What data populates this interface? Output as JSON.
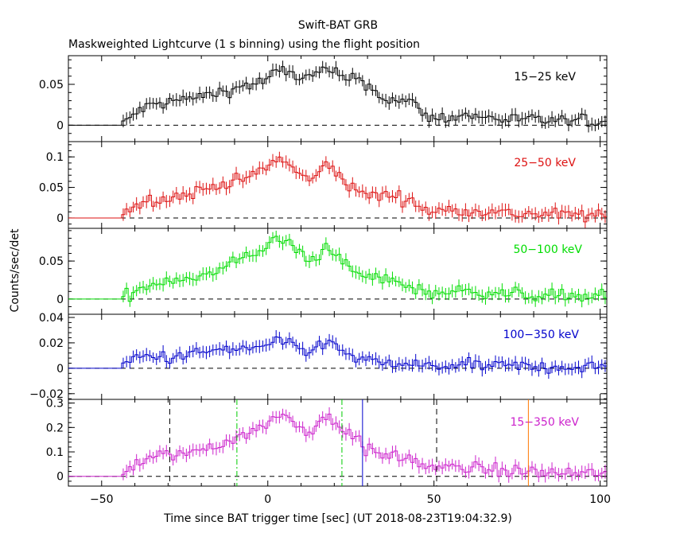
{
  "title": "Swift-BAT GRB",
  "subtitle": "Maskweighted Lightcurve (1 s binning) using the flight position",
  "xlabel": "Time since BAT trigger time [sec] (UT 2018-08-23T19:04:32.9)",
  "ylabel": "Counts/sec/det",
  "chart_data": [
    {
      "type": "line",
      "panel": "15-25 keV",
      "label": "15−25 keV",
      "color": "#000000",
      "xlim": [
        -60,
        102
      ],
      "ylim": [
        -0.02,
        0.085
      ],
      "yticks": [
        0,
        0.05
      ],
      "ytick_labels": [
        "0",
        "0.05"
      ],
      "anchors": [
        [
          -60,
          0
        ],
        [
          -44,
          0
        ],
        [
          -43,
          0.003
        ],
        [
          -40,
          0.015
        ],
        [
          -35,
          0.025
        ],
        [
          -30,
          0.028
        ],
        [
          -25,
          0.032
        ],
        [
          -20,
          0.035
        ],
        [
          -15,
          0.04
        ],
        [
          -10,
          0.045
        ],
        [
          -5,
          0.05
        ],
        [
          0,
          0.055
        ],
        [
          3,
          0.068
        ],
        [
          6,
          0.065
        ],
        [
          9,
          0.06
        ],
        [
          12,
          0.058
        ],
        [
          15,
          0.062
        ],
        [
          18,
          0.07
        ],
        [
          21,
          0.06
        ],
        [
          24,
          0.055
        ],
        [
          27,
          0.06
        ],
        [
          30,
          0.05
        ],
        [
          33,
          0.038
        ],
        [
          36,
          0.032
        ],
        [
          39,
          0.03
        ],
        [
          42,
          0.028
        ],
        [
          45,
          0.025
        ],
        [
          48,
          0.01
        ],
        [
          50,
          0.008
        ],
        [
          55,
          0.01
        ],
        [
          60,
          0.012
        ],
        [
          65,
          0.01
        ],
        [
          70,
          0.008
        ],
        [
          75,
          0.007
        ],
        [
          80,
          0.006
        ],
        [
          85,
          0.006
        ],
        [
          90,
          0.005
        ],
        [
          95,
          0.005
        ],
        [
          102,
          0.005
        ]
      ]
    },
    {
      "type": "line",
      "panel": "25-50 keV",
      "label": "25−50 keV",
      "color": "#dd1111",
      "xlim": [
        -60,
        102
      ],
      "ylim": [
        -0.017,
        0.125
      ],
      "yticks": [
        0,
        0.05,
        0.1
      ],
      "ytick_labels": [
        "0",
        "0.05",
        "0.1"
      ],
      "anchors": [
        [
          -60,
          0
        ],
        [
          -44,
          0
        ],
        [
          -43,
          0.012
        ],
        [
          -40,
          0.02
        ],
        [
          -35,
          0.03
        ],
        [
          -30,
          0.033
        ],
        [
          -25,
          0.038
        ],
        [
          -20,
          0.045
        ],
        [
          -15,
          0.055
        ],
        [
          -10,
          0.06
        ],
        [
          -5,
          0.068
        ],
        [
          0,
          0.085
        ],
        [
          3,
          0.095
        ],
        [
          6,
          0.09
        ],
        [
          9,
          0.075
        ],
        [
          12,
          0.06
        ],
        [
          15,
          0.07
        ],
        [
          18,
          0.09
        ],
        [
          21,
          0.075
        ],
        [
          24,
          0.05
        ],
        [
          27,
          0.045
        ],
        [
          30,
          0.04
        ],
        [
          33,
          0.035
        ],
        [
          36,
          0.038
        ],
        [
          39,
          0.035
        ],
        [
          42,
          0.03
        ],
        [
          45,
          0.022
        ],
        [
          48,
          0.012
        ],
        [
          50,
          0.01
        ],
        [
          55,
          0.013
        ],
        [
          60,
          0.014
        ],
        [
          65,
          0.012
        ],
        [
          70,
          0.008
        ],
        [
          75,
          0.007
        ],
        [
          80,
          0.006
        ],
        [
          85,
          0.006
        ],
        [
          90,
          0.005
        ],
        [
          95,
          0.005
        ],
        [
          102,
          0.003
        ]
      ]
    },
    {
      "type": "line",
      "panel": "50-100 keV",
      "label": "50−100 keV",
      "color": "#00dd00",
      "xlim": [
        -60,
        102
      ],
      "ylim": [
        -0.02,
        0.093
      ],
      "yticks": [
        0,
        0.05
      ],
      "ytick_labels": [
        "0",
        "0.05"
      ],
      "anchors": [
        [
          -60,
          0
        ],
        [
          -44,
          0
        ],
        [
          -43,
          0.005
        ],
        [
          -40,
          0.01
        ],
        [
          -35,
          0.02
        ],
        [
          -30,
          0.025
        ],
        [
          -25,
          0.028
        ],
        [
          -20,
          0.03
        ],
        [
          -15,
          0.035
        ],
        [
          -10,
          0.05
        ],
        [
          -5,
          0.06
        ],
        [
          0,
          0.07
        ],
        [
          3,
          0.078
        ],
        [
          6,
          0.075
        ],
        [
          9,
          0.065
        ],
        [
          12,
          0.048
        ],
        [
          15,
          0.055
        ],
        [
          18,
          0.072
        ],
        [
          21,
          0.06
        ],
        [
          24,
          0.04
        ],
        [
          27,
          0.032
        ],
        [
          30,
          0.03
        ],
        [
          33,
          0.028
        ],
        [
          36,
          0.025
        ],
        [
          39,
          0.022
        ],
        [
          42,
          0.018
        ],
        [
          45,
          0.012
        ],
        [
          48,
          0.01
        ],
        [
          50,
          0.008
        ],
        [
          55,
          0.01
        ],
        [
          60,
          0.01
        ],
        [
          65,
          0.01
        ],
        [
          70,
          0.008
        ],
        [
          75,
          0.006
        ],
        [
          80,
          0.005
        ],
        [
          85,
          0.005
        ],
        [
          90,
          0.004
        ],
        [
          95,
          0.004
        ],
        [
          102,
          0.004
        ]
      ]
    },
    {
      "type": "line",
      "panel": "100-350 keV",
      "label": "100−350 keV",
      "color": "#0000cc",
      "xlim": [
        -60,
        102
      ],
      "ylim": [
        -0.0245,
        0.0425
      ],
      "yticks": [
        -0.02,
        0,
        0.02,
        0.04
      ],
      "ytick_labels": [
        "−0.02",
        "0",
        "0.02",
        "0.04"
      ],
      "anchors": [
        [
          -60,
          0
        ],
        [
          -44,
          0
        ],
        [
          -43,
          0.003
        ],
        [
          -40,
          0.008
        ],
        [
          -35,
          0.01
        ],
        [
          -30,
          0.008
        ],
        [
          -25,
          0.01
        ],
        [
          -20,
          0.012
        ],
        [
          -15,
          0.015
        ],
        [
          -10,
          0.014
        ],
        [
          -5,
          0.016
        ],
        [
          0,
          0.018
        ],
        [
          3,
          0.022
        ],
        [
          6,
          0.018
        ],
        [
          9,
          0.015
        ],
        [
          12,
          0.012
        ],
        [
          15,
          0.016
        ],
        [
          18,
          0.024
        ],
        [
          21,
          0.015
        ],
        [
          24,
          0.01
        ],
        [
          27,
          0.008
        ],
        [
          30,
          0.005
        ],
        [
          33,
          0.004
        ],
        [
          36,
          0.004
        ],
        [
          39,
          0.003
        ],
        [
          42,
          0.003
        ],
        [
          45,
          0.002
        ],
        [
          50,
          0.002
        ],
        [
          55,
          0.002
        ],
        [
          60,
          0.002
        ],
        [
          65,
          0.002
        ],
        [
          70,
          0.002
        ],
        [
          80,
          0.001
        ],
        [
          90,
          0.001
        ],
        [
          102,
          0.001
        ]
      ]
    },
    {
      "type": "line",
      "panel": "15-350 keV",
      "label": "15−350 keV",
      "color": "#cc22cc",
      "xlim": [
        -60,
        102
      ],
      "ylim": [
        -0.04,
        0.315
      ],
      "yticks": [
        0,
        0.1,
        0.2,
        0.3
      ],
      "ytick_labels": [
        "0",
        "0.1",
        "0.2",
        "0.3"
      ],
      "anchors": [
        [
          -60,
          0
        ],
        [
          -44,
          0
        ],
        [
          -43,
          0.025
        ],
        [
          -40,
          0.05
        ],
        [
          -35,
          0.075
        ],
        [
          -30,
          0.085
        ],
        [
          -25,
          0.095
        ],
        [
          -20,
          0.11
        ],
        [
          -15,
          0.13
        ],
        [
          -10,
          0.16
        ],
        [
          -5,
          0.18
        ],
        [
          0,
          0.21
        ],
        [
          3,
          0.255
        ],
        [
          6,
          0.245
        ],
        [
          9,
          0.215
        ],
        [
          12,
          0.175
        ],
        [
          15,
          0.2
        ],
        [
          18,
          0.26
        ],
        [
          21,
          0.21
        ],
        [
          24,
          0.175
        ],
        [
          27,
          0.17
        ],
        [
          29,
          0.11
        ],
        [
          33,
          0.09
        ],
        [
          36,
          0.085
        ],
        [
          39,
          0.08
        ],
        [
          42,
          0.075
        ],
        [
          45,
          0.06
        ],
        [
          48,
          0.04
        ],
        [
          50,
          0.03
        ],
        [
          55,
          0.035
        ],
        [
          60,
          0.035
        ],
        [
          65,
          0.03
        ],
        [
          70,
          0.025
        ],
        [
          75,
          0.02
        ],
        [
          80,
          0.018
        ],
        [
          85,
          0.015
        ],
        [
          90,
          0.013
        ],
        [
          95,
          0.012
        ],
        [
          102,
          0.012
        ]
      ]
    }
  ],
  "markers": [
    {
      "x": -29.5,
      "style": "dashed",
      "color": "#000000"
    },
    {
      "x": 50.8,
      "style": "dashed",
      "color": "#000000"
    },
    {
      "x": -9.3,
      "style": "dashdot",
      "color": "#00cc00"
    },
    {
      "x": 22.3,
      "style": "dashdot",
      "color": "#00cc00"
    },
    {
      "x": 28.5,
      "style": "solid",
      "color": "#0000cc"
    },
    {
      "x": 78.4,
      "style": "solid",
      "color": "#ff7700"
    }
  ],
  "xticks": [
    -50,
    0,
    50,
    100
  ],
  "xtick_labels": [
    "−50",
    "0",
    "50",
    "100"
  ]
}
